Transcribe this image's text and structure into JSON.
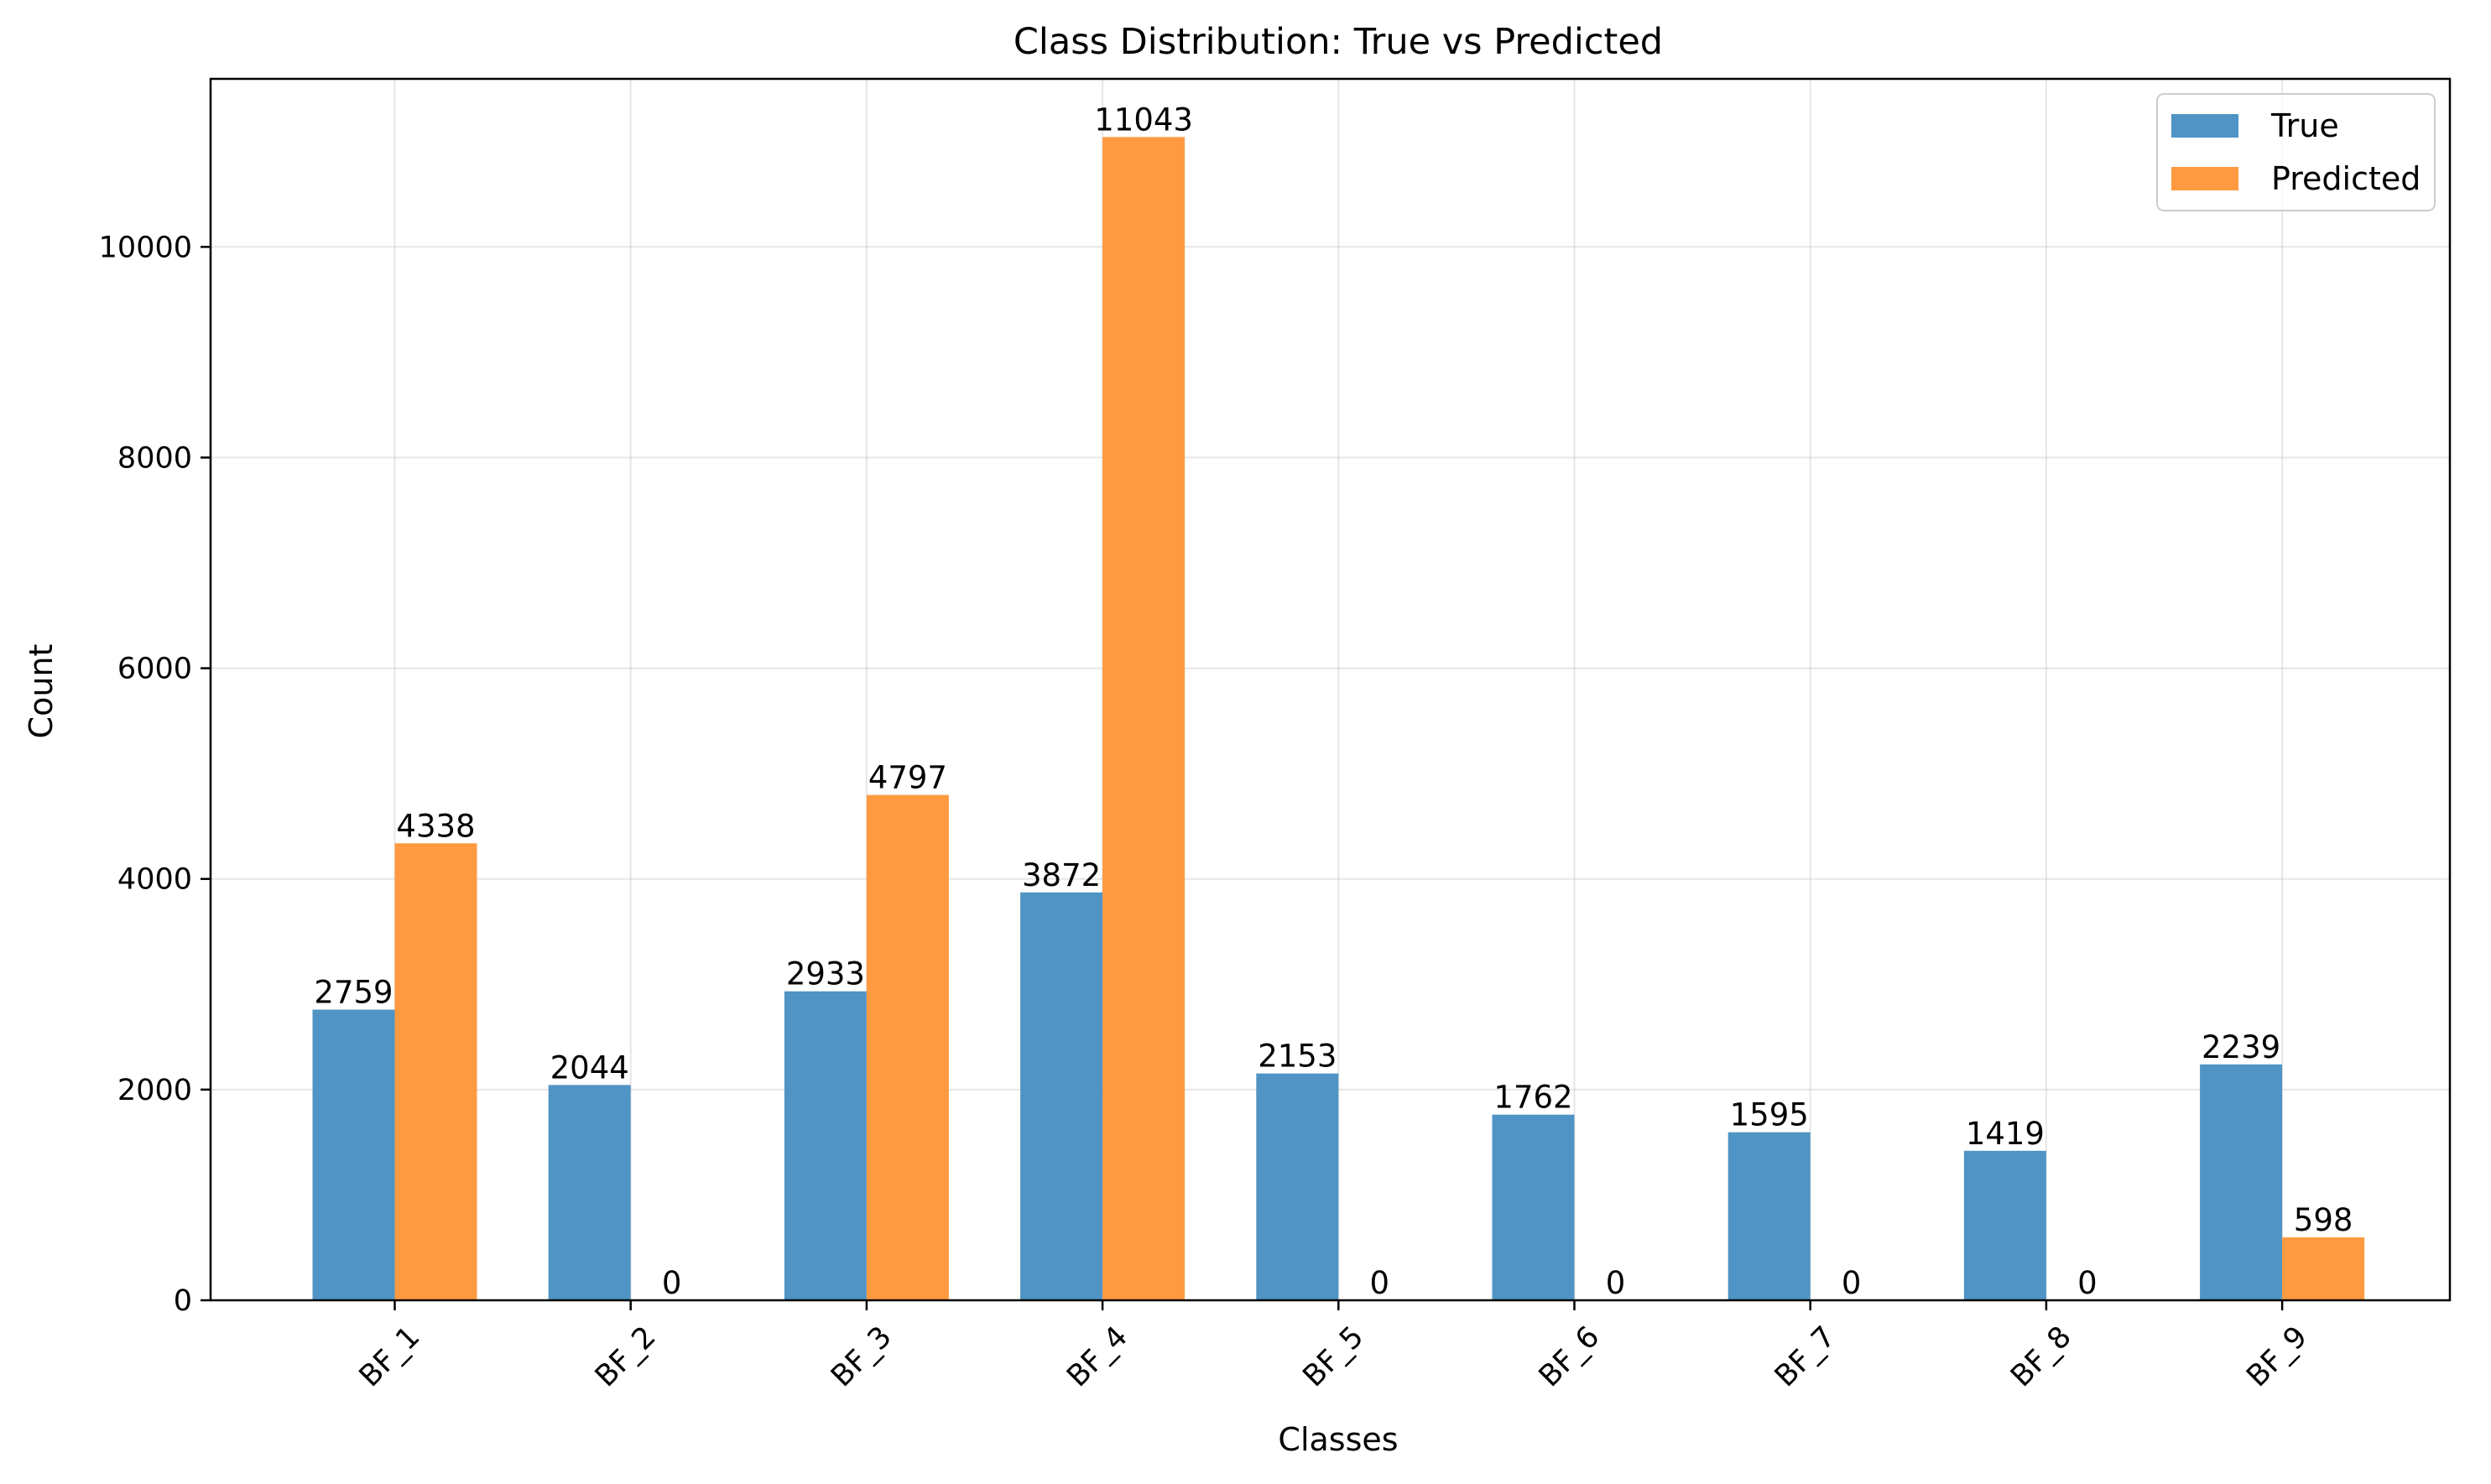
{
  "chart_data": {
    "type": "bar",
    "title": "Class Distribution: True vs Predicted",
    "xlabel": "Classes",
    "ylabel": "Count",
    "categories": [
      "BF_1",
      "BF_2",
      "BF_3",
      "BF_4",
      "BF_5",
      "BF_6",
      "BF_7",
      "BF_8",
      "BF_9"
    ],
    "series": [
      {
        "name": "True",
        "color": "#4f94c4",
        "values": [
          2759,
          2044,
          2933,
          3872,
          2153,
          1762,
          1595,
          1419,
          2239
        ]
      },
      {
        "name": "Predicted",
        "color": "#ff9a40",
        "values": [
          4338,
          0,
          4797,
          11043,
          0,
          0,
          0,
          0,
          598
        ]
      }
    ],
    "ylim": [
      0,
      11595
    ],
    "yticks": [
      0,
      2000,
      4000,
      6000,
      8000,
      10000
    ],
    "grid": true,
    "legend_position": "top-right",
    "x_tick_rotation": 45
  }
}
